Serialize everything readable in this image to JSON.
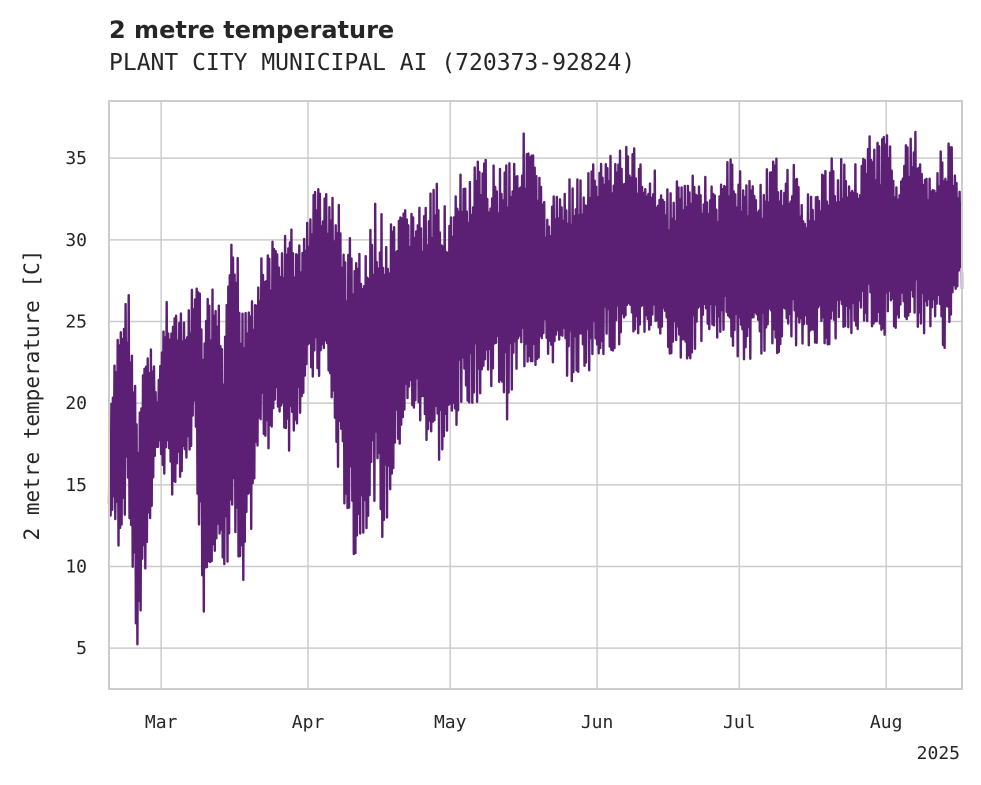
{
  "chart_data": {
    "type": "line",
    "title": "2 metre temperature",
    "subtitle": "PLANT CITY MUNICIPAL AI (720373-92824)",
    "xlabel": "",
    "ylabel": "2 metre temperature [C]",
    "x_start": "2025-02-18",
    "x_end": "2025-08-17",
    "x_ticks": [
      {
        "date": "2025-03-01",
        "label": "Mar"
      },
      {
        "date": "2025-04-01",
        "label": "Apr"
      },
      {
        "date": "2025-05-01",
        "label": "May"
      },
      {
        "date": "2025-06-01",
        "label": "Jun"
      },
      {
        "date": "2025-07-01",
        "label": "Jul"
      },
      {
        "date": "2025-08-01",
        "label": "Aug"
      }
    ],
    "x_year_label": "2025",
    "ylim": [
      2.5,
      38.5
    ],
    "y_ticks": [
      5,
      10,
      15,
      20,
      25,
      30,
      35
    ],
    "grid": true,
    "legend": "none",
    "line_color": "#5b1f73",
    "series": [
      {
        "frequency": "daily min/max envelope (hourly data)",
        "x": [
          "2025-02-18",
          "2025-02-20",
          "2025-02-22",
          "2025-02-24",
          "2025-02-26",
          "2025-02-28",
          "2025-03-02",
          "2025-03-04",
          "2025-03-06",
          "2025-03-08",
          "2025-03-10",
          "2025-03-12",
          "2025-03-14",
          "2025-03-16",
          "2025-03-18",
          "2025-03-20",
          "2025-03-22",
          "2025-03-24",
          "2025-03-26",
          "2025-03-28",
          "2025-03-30",
          "2025-04-01",
          "2025-04-03",
          "2025-04-05",
          "2025-04-07",
          "2025-04-09",
          "2025-04-11",
          "2025-04-13",
          "2025-04-15",
          "2025-04-17",
          "2025-04-19",
          "2025-04-21",
          "2025-04-23",
          "2025-04-25",
          "2025-04-27",
          "2025-04-29",
          "2025-05-01",
          "2025-05-03",
          "2025-05-05",
          "2025-05-07",
          "2025-05-09",
          "2025-05-11",
          "2025-05-13",
          "2025-05-15",
          "2025-05-17",
          "2025-05-19",
          "2025-05-21",
          "2025-05-23",
          "2025-05-25",
          "2025-05-27",
          "2025-05-29",
          "2025-05-31",
          "2025-06-02",
          "2025-06-04",
          "2025-06-06",
          "2025-06-08",
          "2025-06-10",
          "2025-06-12",
          "2025-06-14",
          "2025-06-16",
          "2025-06-18",
          "2025-06-20",
          "2025-06-22",
          "2025-06-24",
          "2025-06-26",
          "2025-06-28",
          "2025-06-30",
          "2025-07-02",
          "2025-07-04",
          "2025-07-06",
          "2025-07-08",
          "2025-07-10",
          "2025-07-12",
          "2025-07-14",
          "2025-07-16",
          "2025-07-18",
          "2025-07-20",
          "2025-07-22",
          "2025-07-24",
          "2025-07-26",
          "2025-07-28",
          "2025-07-30",
          "2025-08-01",
          "2025-08-03",
          "2025-08-05",
          "2025-08-07",
          "2025-08-09",
          "2025-08-11",
          "2025-08-13",
          "2025-08-15",
          "2025-08-17"
        ],
        "min": [
          13,
          11,
          14,
          4,
          10,
          17,
          15,
          14,
          15,
          18,
          7,
          11,
          8,
          12,
          6,
          12,
          18,
          17,
          19,
          17,
          19,
          21,
          21,
          22,
          16,
          13,
          10,
          12,
          14,
          11,
          15,
          18,
          19,
          18,
          17,
          16,
          17,
          19,
          20,
          20,
          21,
          21,
          19,
          21,
          22,
          22,
          23,
          22,
          22,
          21,
          22,
          22,
          23,
          23,
          23,
          23,
          24,
          24,
          24,
          23,
          23,
          22,
          23,
          24,
          24,
          24,
          23,
          22,
          23,
          23,
          23,
          23,
          24,
          23,
          23,
          24,
          23,
          24,
          24,
          24,
          25,
          24,
          24,
          24,
          25,
          25,
          24,
          25,
          23,
          25,
          27
        ],
        "max": [
          19,
          26,
          27,
          19,
          25,
          21,
          27,
          26,
          25,
          28,
          26,
          28,
          24,
          31,
          28,
          28,
          29,
          30,
          30,
          31,
          30,
          32,
          34,
          33,
          33,
          30,
          31,
          29,
          33,
          31,
          31,
          32,
          33,
          32,
          33,
          34,
          32,
          34,
          34,
          35,
          35,
          35,
          36,
          36,
          37,
          35,
          32,
          33,
          34,
          34,
          34,
          35,
          35,
          36,
          36,
          36,
          35,
          35,
          34,
          33,
          34,
          34,
          34,
          34,
          33,
          35,
          35,
          34,
          34,
          34,
          35,
          35,
          35,
          33,
          33,
          34,
          35,
          35,
          35,
          35,
          37,
          36,
          37,
          35,
          36,
          37,
          35,
          35,
          36,
          36,
          33
        ]
      }
    ]
  }
}
